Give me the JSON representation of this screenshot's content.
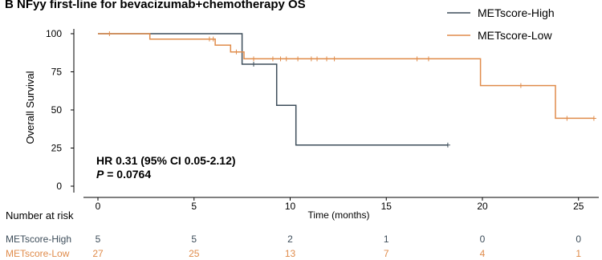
{
  "chart_data": {
    "type": "line",
    "title": "B NFyy first-line for bevacizumab+chemotherapy OS",
    "xlabel": "Time (months)",
    "ylabel": "Overall Survival",
    "xlim": [
      -1,
      26
    ],
    "ylim": [
      0,
      105
    ],
    "xticks": [
      0,
      5,
      10,
      15,
      20,
      25
    ],
    "yticks": [
      0,
      25,
      50,
      75,
      100
    ],
    "legend_position": "top-right",
    "colors": {
      "high": "#3d4d5a",
      "low": "#e08c4b"
    },
    "annotation": {
      "hr": "HR 0.31 (95% CI 0.05-2.12)",
      "p_label": "P",
      "p_value": " = 0.0764"
    },
    "series": [
      {
        "name": "METscore-High",
        "color": "#3d4d5a",
        "steps": [
          [
            0,
            100
          ],
          [
            7.5,
            100
          ],
          [
            7.5,
            80
          ],
          [
            9.3,
            80
          ],
          [
            9.3,
            53
          ],
          [
            10.3,
            53
          ],
          [
            10.3,
            27
          ],
          [
            18.2,
            27
          ]
        ],
        "censor": [
          [
            8.1,
            80
          ],
          [
            18.2,
            27
          ]
        ]
      },
      {
        "name": "METscore-Low",
        "color": "#e08c4b",
        "steps": [
          [
            0,
            100
          ],
          [
            2.7,
            100
          ],
          [
            2.7,
            96.5
          ],
          [
            6.1,
            96.5
          ],
          [
            6.1,
            92.5
          ],
          [
            6.9,
            92.5
          ],
          [
            6.9,
            88
          ],
          [
            7.6,
            88
          ],
          [
            7.6,
            83.5
          ],
          [
            19.9,
            83.5
          ],
          [
            19.9,
            66
          ],
          [
            23.8,
            66
          ],
          [
            23.8,
            44.5
          ],
          [
            25.8,
            44.5
          ]
        ],
        "censor": [
          [
            0.6,
            100
          ],
          [
            5.8,
            96.5
          ],
          [
            6.0,
            96.5
          ],
          [
            7.2,
            88
          ],
          [
            8.1,
            83.5
          ],
          [
            9.1,
            83.5
          ],
          [
            9.5,
            83.5
          ],
          [
            9.8,
            83.5
          ],
          [
            10.4,
            83.5
          ],
          [
            11.1,
            83.5
          ],
          [
            11.4,
            83.5
          ],
          [
            11.9,
            83.5
          ],
          [
            12.3,
            83.5
          ],
          [
            16.6,
            83.5
          ],
          [
            17.2,
            83.5
          ],
          [
            22.0,
            66
          ],
          [
            24.4,
            44.5
          ],
          [
            25.8,
            44.5
          ]
        ]
      }
    ],
    "risk_table": {
      "title": "Number at risk",
      "times": [
        0,
        5,
        10,
        15,
        20,
        25
      ],
      "rows": [
        {
          "name": "METscore-High",
          "color": "#3d4d5a",
          "values": [
            5,
            5,
            2,
            1,
            0,
            0
          ]
        },
        {
          "name": "METscore-Low",
          "color": "#e08c4b",
          "values": [
            27,
            25,
            13,
            7,
            4,
            1
          ]
        }
      ]
    }
  }
}
